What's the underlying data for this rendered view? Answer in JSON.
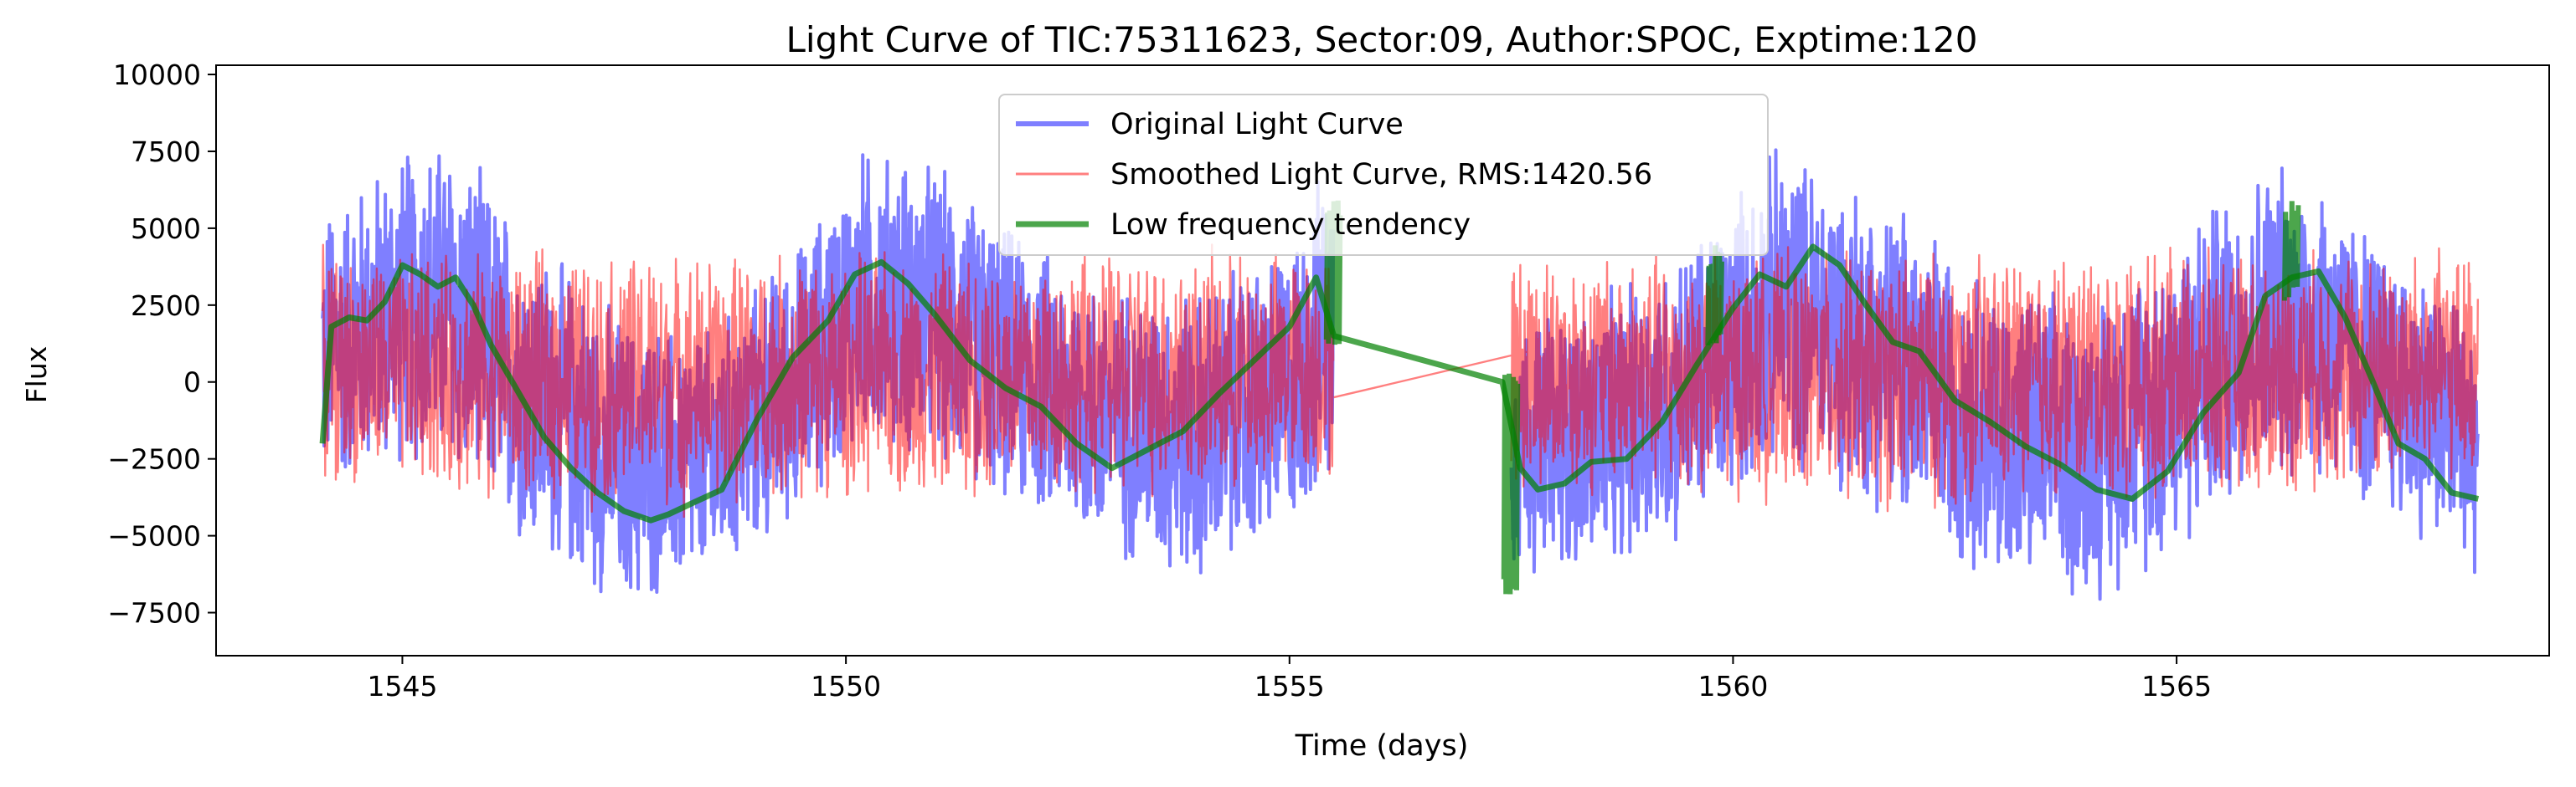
{
  "chart_data": {
    "type": "line",
    "title": "Light Curve of TIC:75311623, Sector:09, Author:SPOC, Exptime:120",
    "xlabel": "Time (days)",
    "ylabel": "Flux",
    "xlim": [
      1542.9,
      1569.2
    ],
    "ylim": [
      -8900,
      10300
    ],
    "xticks": [
      1545,
      1550,
      1555,
      1560,
      1565
    ],
    "yticks": [
      -7500,
      -5000,
      -2500,
      0,
      2500,
      5000,
      7500,
      10000
    ],
    "grid": false,
    "legend_position": "top-center",
    "gap": [
      1555.5,
      1557.5
    ],
    "series": [
      {
        "name": "Original Light Curve",
        "color": "#0000ff",
        "opacity": 0.5,
        "style": "dense line, thick",
        "x_range": [
          1544.1,
          1568.4
        ],
        "envelope": {
          "x": [
            1544.1,
            1545.0,
            1545.5,
            1546.5,
            1547.5,
            1548.5,
            1549.5,
            1550.2,
            1551.0,
            1552.0,
            1553.0,
            1554.0,
            1555.0,
            1555.5,
            1557.5,
            1558.5,
            1559.5,
            1560.5,
            1561.0,
            1562.0,
            1563.0,
            1564.0,
            1565.0,
            1566.0,
            1566.5,
            1567.5,
            1568.4
          ],
          "upper": [
            6000,
            8000,
            8500,
            5000,
            2500,
            2000,
            5000,
            8000,
            7500,
            5000,
            3500,
            3500,
            5000,
            8000,
            2500,
            3000,
            5000,
            8000,
            7500,
            6000,
            3500,
            3000,
            5500,
            7500,
            7500,
            4500,
            3000
          ],
          "lower": [
            -4000,
            -3000,
            -3500,
            -6000,
            -7800,
            -7000,
            -4500,
            -2500,
            -3000,
            -4500,
            -6000,
            -7000,
            -5500,
            -3500,
            -6500,
            -6500,
            -5500,
            -3000,
            -3500,
            -5000,
            -7000,
            -7500,
            -6000,
            -3500,
            -3500,
            -5000,
            -6500
          ]
        }
      },
      {
        "name": "Smoothed Light Curve, RMS:1420.56",
        "color": "#ff0000",
        "opacity": 0.5,
        "style": "dense line, thin",
        "x_range": [
          1544.1,
          1568.4
        ],
        "envelope": {
          "x": [
            1544.1,
            1546.0,
            1548.0,
            1550.0,
            1552.0,
            1554.0,
            1555.5,
            1557.5,
            1560.0,
            1562.0,
            1564.0,
            1566.0,
            1568.4
          ],
          "upper": [
            4500,
            4500,
            4500,
            4500,
            4500,
            4500,
            4500,
            4500,
            4500,
            4500,
            4500,
            4500,
            4500
          ],
          "lower": [
            -3500,
            -4000,
            -4500,
            -4000,
            -4000,
            -4000,
            -3500,
            -4000,
            -4000,
            -4500,
            -4000,
            -4000,
            -3500
          ]
        }
      },
      {
        "name": "Low frequency tendency",
        "color": "#008000",
        "opacity": 0.7,
        "style": "solid line, thick",
        "x": [
          1544.1,
          1544.2,
          1544.4,
          1544.6,
          1544.8,
          1545.0,
          1545.2,
          1545.4,
          1545.6,
          1545.8,
          1546.0,
          1546.3,
          1546.6,
          1546.9,
          1547.2,
          1547.5,
          1547.8,
          1548.0,
          1548.3,
          1548.6,
          1549.0,
          1549.4,
          1549.8,
          1550.1,
          1550.4,
          1550.7,
          1551.0,
          1551.4,
          1551.8,
          1552.2,
          1552.6,
          1553.0,
          1553.4,
          1553.8,
          1554.2,
          1554.6,
          1555.0,
          1555.3,
          1555.5,
          1557.4,
          1557.6,
          1557.8,
          1558.1,
          1558.4,
          1558.8,
          1559.2,
          1559.6,
          1560.0,
          1560.3,
          1560.6,
          1560.9,
          1561.2,
          1561.5,
          1561.8,
          1562.1,
          1562.5,
          1562.9,
          1563.3,
          1563.7,
          1564.1,
          1564.5,
          1564.9,
          1565.3,
          1565.7,
          1566.0,
          1566.3,
          1566.6,
          1566.9,
          1567.2,
          1567.5,
          1567.8,
          1568.1,
          1568.4
        ],
        "y": [
          -2000,
          1800,
          2100,
          2000,
          2600,
          3800,
          3500,
          3100,
          3400,
          2500,
          1200,
          -300,
          -1800,
          -2800,
          -3600,
          -4200,
          -4500,
          -4300,
          -3900,
          -3500,
          -1200,
          800,
          2000,
          3500,
          3900,
          3200,
          2200,
          700,
          -200,
          -800,
          -2000,
          -2800,
          -2200,
          -1600,
          -400,
          700,
          1800,
          3400,
          1500,
          0,
          -2800,
          -3500,
          -3300,
          -2600,
          -2500,
          -1300,
          600,
          2400,
          3500,
          3100,
          4400,
          3800,
          2500,
          1300,
          1000,
          -600,
          -1300,
          -2100,
          -2700,
          -3500,
          -3800,
          -2900,
          -1000,
          300,
          2800,
          3400,
          3600,
          2100,
          100,
          -2000,
          -2500,
          -3600,
          -3800
        ],
        "spikes": [
          {
            "x": 1555.5,
            "y_min": 1200,
            "y_max": 6000
          },
          {
            "x": 1557.5,
            "y_min": -7000,
            "y_max": 500
          },
          {
            "x": 1566.3,
            "y_min": 2500,
            "y_max": 6000
          },
          {
            "x": 1559.8,
            "y_min": 1000,
            "y_max": 4500
          }
        ]
      }
    ]
  }
}
